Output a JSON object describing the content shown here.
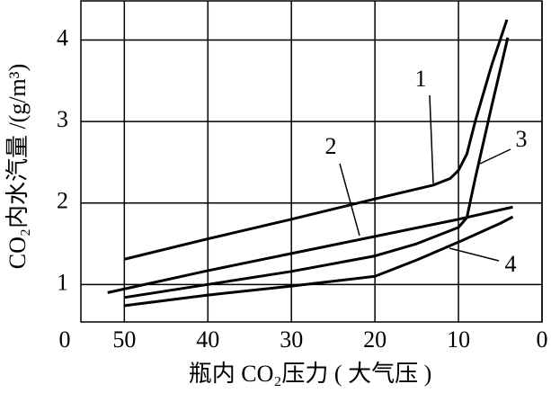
{
  "chart_data": {
    "type": "line",
    "x_label": "瓶内 CO₂压力 ( 大气压 )",
    "y_label": "CO₂内水汽量 /(g/m³)",
    "origin_label": "0",
    "xlim": [
      55.2,
      0
    ],
    "ylim": [
      0.54,
      4.48
    ],
    "xticks": [
      50,
      40,
      30,
      20,
      10,
      0
    ],
    "yticks": [
      1,
      2,
      3,
      4
    ],
    "grid": true,
    "color": "#000000",
    "series": [
      {
        "name": "1",
        "x": [
          50,
          40,
          30,
          20,
          13,
          11,
          10,
          9,
          8,
          6,
          4.2
        ],
        "values": [
          1.31,
          1.56,
          1.8,
          2.05,
          2.22,
          2.3,
          2.4,
          2.6,
          3.0,
          3.7,
          4.25
        ]
      },
      {
        "name": "2",
        "x": [
          52,
          40,
          30,
          20,
          10,
          3.5
        ],
        "values": [
          0.9,
          1.17,
          1.38,
          1.59,
          1.8,
          1.95
        ]
      },
      {
        "name": "3",
        "x": [
          50,
          40,
          30,
          20,
          15,
          10,
          9,
          8,
          6,
          4.1
        ],
        "values": [
          0.84,
          1.0,
          1.16,
          1.35,
          1.5,
          1.7,
          1.82,
          2.3,
          3.2,
          4.03
        ]
      },
      {
        "name": "4",
        "x": [
          50,
          40,
          30,
          20,
          15,
          10,
          5,
          3.5
        ],
        "values": [
          0.74,
          0.87,
          0.98,
          1.1,
          1.3,
          1.52,
          1.75,
          1.83
        ]
      }
    ]
  }
}
